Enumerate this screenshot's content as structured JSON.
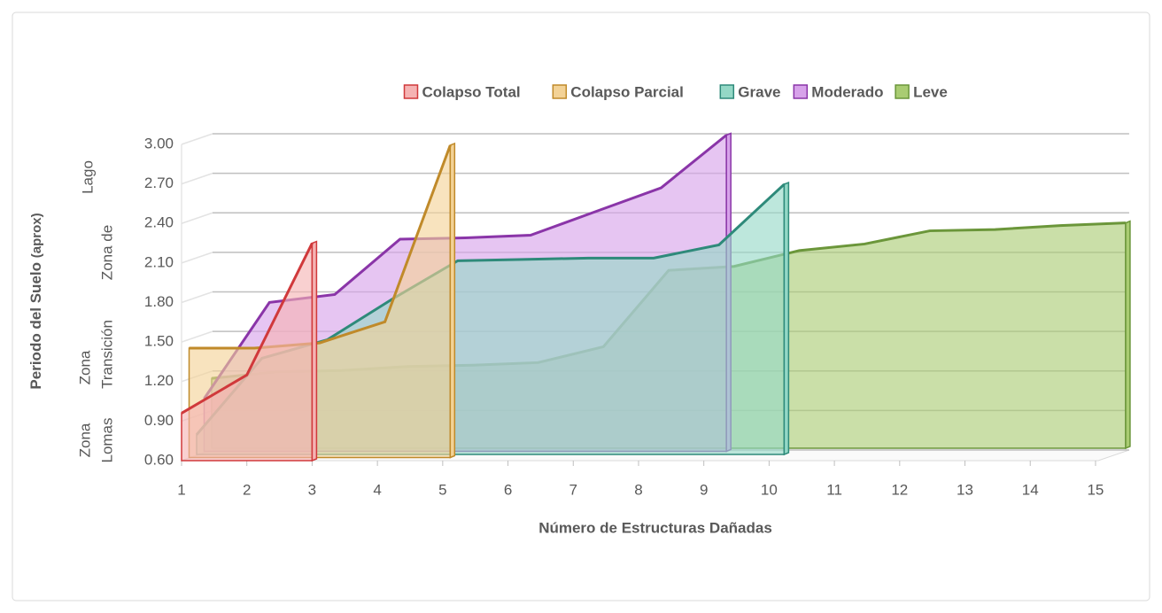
{
  "chart_data": {
    "type": "area3d",
    "y_label": "Periodo del Suelo",
    "y_label_note": "(aprox)",
    "x_label": "Número de Estructuras Dañadas",
    "categories": [
      1,
      2,
      3,
      4,
      5,
      6,
      7,
      8,
      9,
      10,
      11,
      12,
      13,
      14,
      15
    ],
    "ylim": [
      0.6,
      3.0
    ],
    "yticks": [
      {
        "value": 0.6,
        "label": "0.60"
      },
      {
        "value": 0.9,
        "label": "0.90"
      },
      {
        "value": 1.2,
        "label": "1.20"
      },
      {
        "value": 1.5,
        "label": "1.50"
      },
      {
        "value": 1.8,
        "label": "1.80"
      },
      {
        "value": 2.1,
        "label": "2.10"
      },
      {
        "value": 2.4,
        "label": "2.40"
      },
      {
        "value": 2.7,
        "label": "2.70"
      },
      {
        "value": 3.0,
        "label": "3.00"
      }
    ],
    "grid": true,
    "legend": "top",
    "annotations": [
      {
        "lines": [
          "Zona",
          "Lomas"
        ]
      },
      {
        "lines": [
          "Zona",
          "Transición"
        ]
      },
      {
        "lines": [
          "Zona de",
          "Lago"
        ]
      }
    ],
    "series": [
      {
        "name": "Colapso Total",
        "color": "#d0393b",
        "fill": "#f5b3b3",
        "values": [
          0.96,
          1.25,
          2.25,
          null,
          null,
          null,
          null,
          null,
          null,
          null,
          null,
          null,
          null,
          null,
          null
        ]
      },
      {
        "name": "Colapso Parcial",
        "color": "#c08a2a",
        "fill": "#f3d296",
        "values": [
          1.43,
          1.43,
          1.47,
          1.63,
          2.97,
          null,
          null,
          null,
          null,
          null,
          null,
          null,
          null,
          null,
          null
        ]
      },
      {
        "name": "Grave",
        "color": "#2e8a7a",
        "fill": "#94d8c6",
        "values": [
          0.75,
          1.33,
          1.47,
          1.78,
          2.07,
          2.08,
          2.09,
          2.09,
          2.19,
          2.65,
          null,
          null,
          null,
          null,
          null
        ]
      },
      {
        "name": "Moderado",
        "color": "#8a35a8",
        "fill": "#d7a2ea",
        "values": [
          1.0,
          1.73,
          1.79,
          2.21,
          2.22,
          2.24,
          2.42,
          2.6,
          3.0,
          null,
          null,
          null,
          null,
          null,
          null
        ]
      },
      {
        "name": "Leve",
        "color": "#6b963a",
        "fill": "#a9cc72",
        "values": [
          1.13,
          1.18,
          1.19,
          1.22,
          1.23,
          1.25,
          1.37,
          1.95,
          1.98,
          2.1,
          2.15,
          2.25,
          2.26,
          2.29,
          2.31
        ]
      }
    ]
  }
}
